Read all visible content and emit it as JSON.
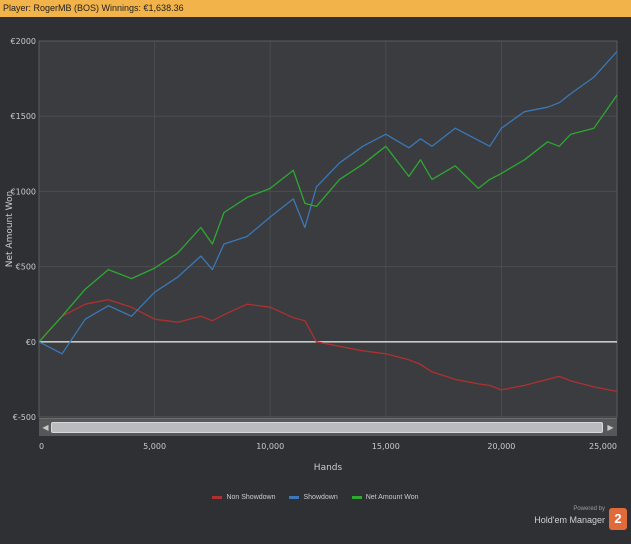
{
  "window": {
    "title": "Player: RogerMB (BOS) Winnings: €1,638.36"
  },
  "colors": {
    "background": "#2e3033",
    "plot_background": "#3a3c3f",
    "title_bar": "#f2b34a",
    "grid": "#4a4c4f",
    "zero_line": "#c8c8c8",
    "non_showdown": "#b03030",
    "showdown": "#3a78b8",
    "net_amount_won": "#2ea832"
  },
  "brand": {
    "powered_by": "Powered by",
    "name": "Hold'em Manager",
    "badge": "2",
    "icon": "hm2-logo-icon"
  },
  "chart_data": {
    "type": "line",
    "xlabel": "Hands",
    "ylabel": "Net Amount Won",
    "xlim": [
      0,
      25000
    ],
    "ylim": [
      -500,
      2000
    ],
    "x_ticks": [
      0,
      5000,
      10000,
      15000,
      20000,
      25000
    ],
    "x_tick_labels": [
      "0",
      "5,000",
      "10,000",
      "15,000",
      "20,000",
      "25,000"
    ],
    "y_ticks": [
      -500,
      0,
      500,
      1000,
      1500,
      2000
    ],
    "y_tick_labels": [
      "€-500",
      "€0",
      "€500",
      "€1000",
      "€1500",
      "€2000"
    ],
    "grid": true,
    "legend": "bottom-center",
    "x": [
      0,
      1000,
      2000,
      3000,
      4000,
      5000,
      6000,
      7000,
      7500,
      8000,
      9000,
      10000,
      11000,
      11500,
      12000,
      13000,
      14000,
      15000,
      16000,
      16500,
      17000,
      18000,
      19000,
      19500,
      20000,
      21000,
      22000,
      22500,
      23000,
      24000,
      25000
    ],
    "series": [
      {
        "name": "Non Showdown",
        "color": "#b03030",
        "values": [
          0,
          170,
          250,
          280,
          230,
          150,
          130,
          170,
          140,
          180,
          250,
          230,
          160,
          140,
          0,
          -30,
          -60,
          -80,
          -120,
          -150,
          -200,
          -250,
          -280,
          -290,
          -320,
          -290,
          -250,
          -230,
          -260,
          -300,
          -330
        ]
      },
      {
        "name": "Showdown",
        "color": "#3a78b8",
        "values": [
          0,
          -80,
          150,
          240,
          170,
          330,
          430,
          570,
          480,
          650,
          700,
          830,
          950,
          760,
          1030,
          1190,
          1300,
          1380,
          1290,
          1350,
          1300,
          1420,
          1340,
          1300,
          1420,
          1530,
          1560,
          1590,
          1650,
          1760,
          1930
        ]
      },
      {
        "name": "Net Amount Won",
        "color": "#2ea832",
        "values": [
          0,
          170,
          350,
          480,
          420,
          490,
          590,
          760,
          650,
          860,
          960,
          1020,
          1140,
          920,
          900,
          1080,
          1180,
          1300,
          1100,
          1210,
          1080,
          1170,
          1020,
          1080,
          1120,
          1210,
          1330,
          1300,
          1380,
          1420,
          1640
        ]
      }
    ]
  }
}
